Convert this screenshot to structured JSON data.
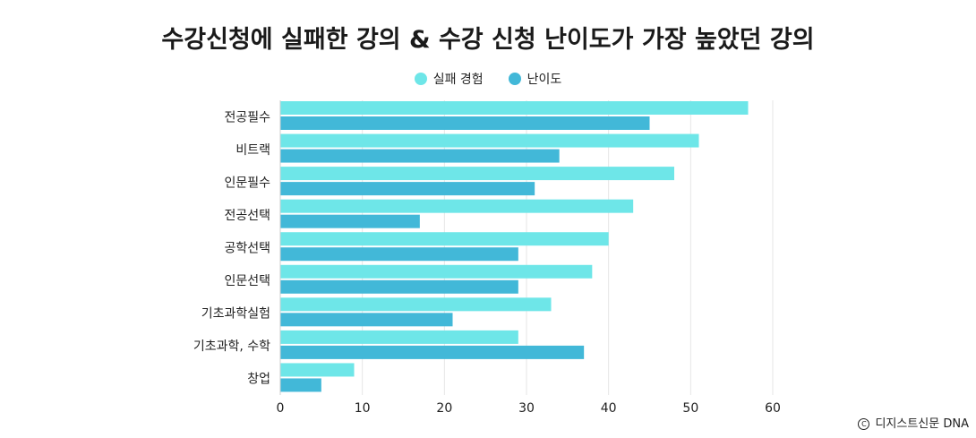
{
  "chart_data": {
    "type": "bar",
    "orientation": "horizontal",
    "title": "수강신청에 실패한 강의 & 수강 신청 난이도가 가장 높았던 강의",
    "categories": [
      "전공필수",
      "비트랙",
      "인문필수",
      "전공선택",
      "공학선택",
      "인문선택",
      "기초과학실험",
      "기초과학, 수학",
      "창업"
    ],
    "series": [
      {
        "name": "실패 경험",
        "color": "#6ee6e8",
        "values": [
          57,
          51,
          48,
          43,
          40,
          38,
          33,
          29,
          9
        ]
      },
      {
        "name": "난이도",
        "color": "#42b8d8",
        "values": [
          45,
          34,
          31,
          17,
          29,
          29,
          21,
          37,
          5
        ]
      }
    ],
    "xlim": [
      0,
      60
    ],
    "xticks": [
      0,
      10,
      20,
      30,
      40,
      50,
      60
    ],
    "grid": true,
    "legend": "top-center"
  },
  "footer": {
    "source": "디지스트신문 DNA",
    "copyright_symbol": "C"
  }
}
